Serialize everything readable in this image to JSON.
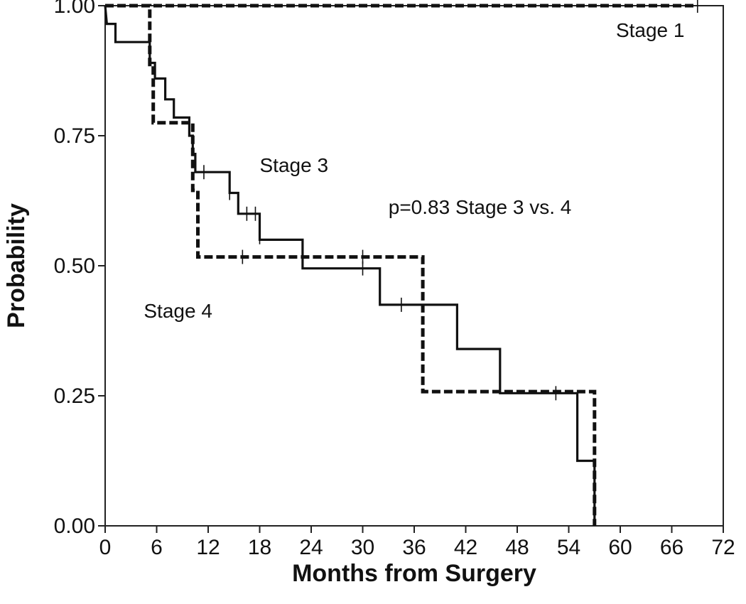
{
  "chart_data": {
    "type": "line",
    "subtype": "kaplan-meier step",
    "xlabel": "Months from Surgery",
    "ylabel": "Probability",
    "xlim": [
      0,
      72
    ],
    "ylim": [
      0,
      1
    ],
    "x_ticks": [
      "0",
      "6",
      "12",
      "18",
      "24",
      "30",
      "36",
      "42",
      "48",
      "54",
      "60",
      "66",
      "72"
    ],
    "y_ticks": [
      "0.00",
      "0.25",
      "0.50",
      "0.75",
      "1.00"
    ],
    "grid": false,
    "annotations": [
      {
        "text": "Stage 1",
        "x": 59.5,
        "y": 0.94
      },
      {
        "text": "Stage 3",
        "x": 18,
        "y": 0.68
      },
      {
        "text": "Stage 4",
        "x": 4.5,
        "y": 0.4
      },
      {
        "text": "p=0.83 Stage 3 vs. 4",
        "x": 33,
        "y": 0.6
      }
    ],
    "series": [
      {
        "style": "dashed",
        "steps": [
          [
            0,
            1.0
          ],
          [
            69,
            1.0
          ]
        ],
        "censored": [
          [
            69,
            1.0
          ]
        ]
      },
      {
        "style": "solid",
        "steps": [
          [
            0,
            1.0
          ],
          [
            0.2,
            0.965
          ],
          [
            1.2,
            0.965
          ],
          [
            1.2,
            0.93
          ],
          [
            2.8,
            0.93
          ],
          [
            2.8,
            0.93
          ],
          [
            5.2,
            0.93
          ],
          [
            5.2,
            0.89
          ],
          [
            5.8,
            0.89
          ],
          [
            5.8,
            0.86
          ],
          [
            7,
            0.86
          ],
          [
            7,
            0.82
          ],
          [
            8,
            0.82
          ],
          [
            8,
            0.785
          ],
          [
            9.8,
            0.785
          ],
          [
            9.8,
            0.75
          ],
          [
            10.2,
            0.75
          ],
          [
            10.2,
            0.715
          ],
          [
            10.5,
            0.715
          ],
          [
            10.5,
            0.68
          ],
          [
            14.5,
            0.68
          ],
          [
            14.5,
            0.64
          ],
          [
            15.5,
            0.64
          ],
          [
            15.5,
            0.6
          ],
          [
            18,
            0.6
          ],
          [
            18,
            0.55
          ],
          [
            23,
            0.55
          ],
          [
            23,
            0.495
          ],
          [
            32,
            0.495
          ],
          [
            32,
            0.425
          ],
          [
            41,
            0.425
          ],
          [
            41,
            0.34
          ],
          [
            46,
            0.34
          ],
          [
            46,
            0.255
          ],
          [
            55,
            0.255
          ],
          [
            55,
            0.125
          ],
          [
            57,
            0.125
          ],
          [
            57,
            0.0
          ]
        ],
        "censored": [
          [
            11.5,
            0.68
          ],
          [
            14.5,
            0.64
          ],
          [
            16.5,
            0.6
          ],
          [
            17.5,
            0.6
          ],
          [
            18,
            0.555
          ],
          [
            30,
            0.495
          ],
          [
            34.5,
            0.425
          ],
          [
            52.5,
            0.255
          ]
        ]
      },
      {
        "style": "dashed",
        "steps": [
          [
            0,
            1.0
          ],
          [
            5.2,
            1.0
          ],
          [
            5.2,
            0.88
          ],
          [
            5.6,
            0.88
          ],
          [
            5.6,
            0.775
          ],
          [
            10.2,
            0.775
          ],
          [
            10.2,
            0.645
          ],
          [
            10.8,
            0.645
          ],
          [
            10.8,
            0.517
          ],
          [
            37,
            0.517
          ],
          [
            37,
            0.258
          ],
          [
            57,
            0.258
          ],
          [
            57,
            0.0
          ]
        ],
        "censored": [
          [
            16,
            0.517
          ],
          [
            30,
            0.517
          ]
        ]
      }
    ]
  }
}
